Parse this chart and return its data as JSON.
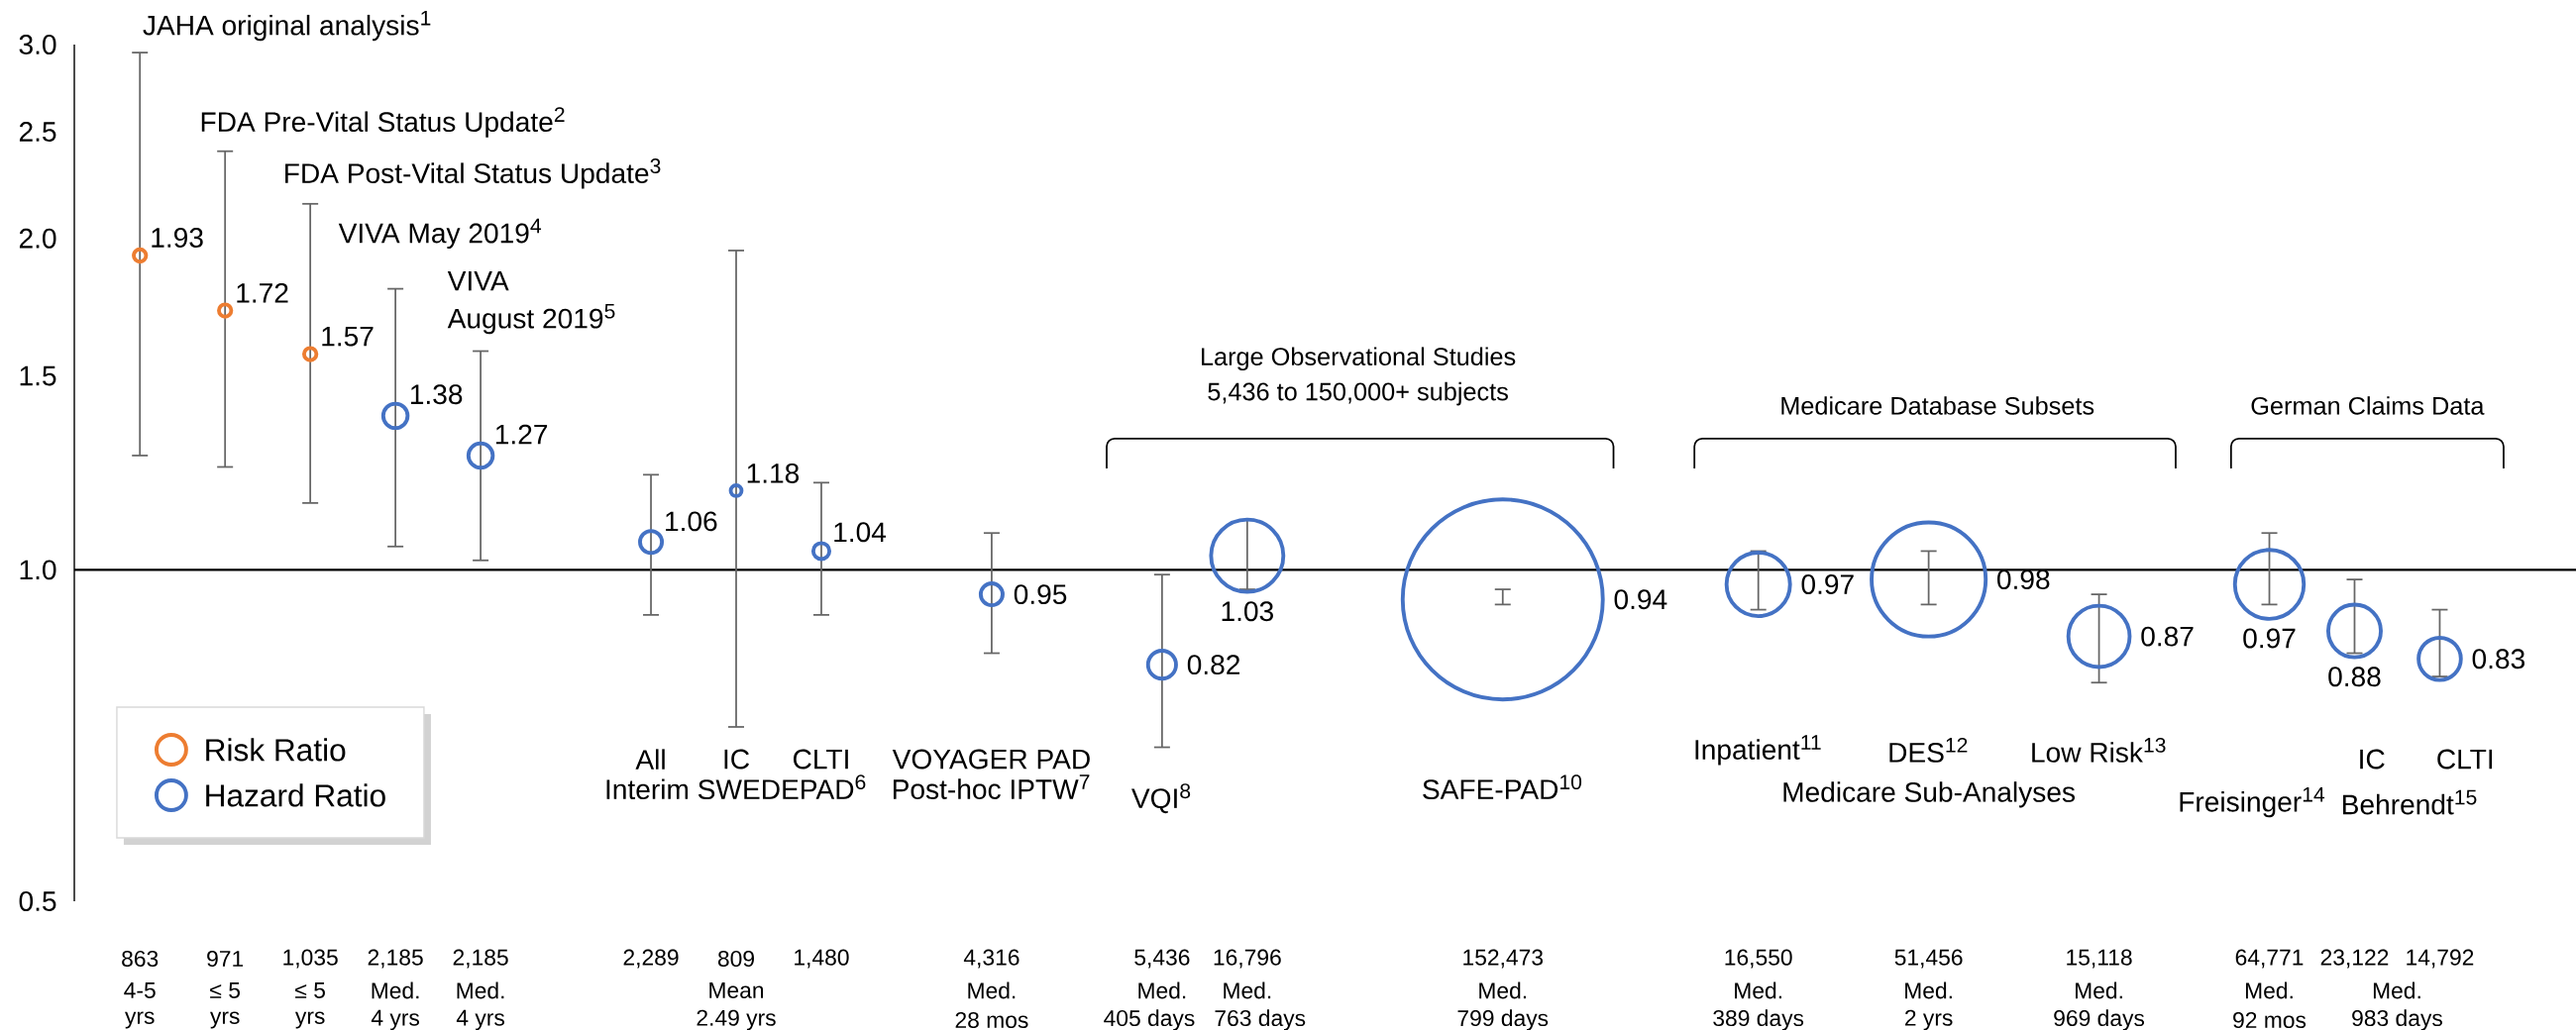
{
  "chart_data": {
    "type": "bubble",
    "categories": [
      "863",
      "971",
      "1,035",
      "2,185",
      "2,185",
      null,
      "2,289",
      "809",
      "1,480",
      null,
      "4,316",
      null,
      "5,436",
      "16,796",
      null,
      null,
      "152,473",
      null,
      null,
      "16,550",
      null,
      "51,456",
      null,
      "15,118",
      null,
      "64,771",
      "23,122",
      "14,792"
    ],
    "series": [
      {
        "name": "Risk Ratio",
        "color": "#ed7d31",
        "values": [
          1.93,
          1.72,
          1.57,
          null,
          null,
          null,
          null,
          null,
          null,
          null,
          null,
          null,
          null,
          null,
          null,
          null,
          null,
          null,
          null,
          null,
          null,
          null,
          null,
          null,
          null,
          null,
          null,
          null
        ],
        "sizes": [
          0.005,
          0.005,
          0.005,
          null,
          null,
          null,
          null,
          null,
          null,
          null,
          null,
          null,
          null,
          null,
          null,
          null,
          null,
          null,
          null,
          null,
          null,
          null,
          null,
          null,
          null,
          null,
          null,
          null
        ],
        "errors": [
          [
            1.27,
            2.95
          ],
          [
            1.24,
            2.4
          ],
          [
            1.15,
            2.15
          ],
          null,
          null,
          null,
          null,
          null,
          null,
          null,
          null,
          null,
          null,
          null,
          null,
          null,
          null,
          null,
          null,
          null,
          null,
          null,
          null,
          null,
          null,
          null,
          null,
          null
        ]
      },
      {
        "name": "Hazard Ratio",
        "color": "#4472c4",
        "values": [
          null,
          null,
          null,
          1.38,
          1.27,
          null,
          1.06,
          1.18,
          1.04,
          null,
          0.95,
          null,
          0.82,
          1.03,
          null,
          null,
          0.94,
          null,
          null,
          0.97,
          null,
          0.98,
          null,
          0.87,
          null,
          0.97,
          0.88,
          0.83
        ],
        "sizes": [
          null,
          null,
          null,
          0.017,
          0.017,
          null,
          0.014,
          0.004,
          0.008,
          null,
          0.014,
          null,
          0.022,
          0.135,
          null,
          null,
          1,
          null,
          null,
          0.105,
          null,
          0.33,
          null,
          0.098,
          null,
          0.123,
          0.073,
          0.048
        ],
        "errors": [
          null,
          null,
          null,
          [
            1.05,
            1.8
          ],
          [
            1.02,
            1.58
          ],
          null,
          [
            0.91,
            1.22
          ],
          [
            0.72,
            1.95
          ],
          [
            0.91,
            1.2
          ],
          null,
          [
            0.84,
            1.08
          ],
          null,
          [
            0.69,
            0.99
          ],
          [
            0.96,
            1.11
          ],
          null,
          null,
          [
            0.93,
            0.96
          ],
          null,
          null,
          [
            0.92,
            1.04
          ],
          null,
          [
            0.93,
            1.04
          ],
          null,
          [
            0.79,
            0.95
          ],
          null,
          [
            0.93,
            1.08
          ],
          [
            0.84,
            0.98
          ],
          [
            0.8,
            0.92
          ]
        ]
      }
    ],
    "ylim": [
      0.5,
      3.0
    ],
    "yticks": [
      0.5,
      {
        "value": 1.0,
        "label": "1.0"
      },
      1.5,
      {
        "value": 2.0,
        "label": "2.0"
      },
      2.5,
      {
        "value": 3.0,
        "label": "3.0"
      }
    ],
    "log": "y",
    "ref_lines": [
      {
        "axis": "y",
        "value": 1.0
      }
    ],
    "legend": "bottom left",
    "data_labels": true,
    "annotations": [
      "JAHA original analysis$^{1}$",
      "FDA Pre-Vital Status Update$^{2}$",
      "FDA Post-Vital Status Update$^{3}$",
      "VIVA May 2019$^{4}$",
      "VIVA",
      "August 2019$^{5}$",
      "All",
      "IC",
      "CLTI",
      "Interim SWEDEPAD$^{6}$",
      "VOYAGER PAD",
      "Post-hoc IPTW$^{7}$",
      "VQI$^{8}$",
      "SAFE-PAD$^{10}$",
      "Inpatient$^{11}$",
      "DES$^{12}$",
      "Low Risk$^{13}$",
      "Medicare Sub-Analyses",
      "IC",
      "CLTI",
      "Freisinger$^{14}$",
      "Behrendt$^{15}$",
      "Large Observational Studies",
      "5,436 to 150,000+ subjects",
      "Medicare Database Subsets",
      "German Claims Data",
      "4-5",
      "≤ 5",
      "≤ 5",
      "Med.",
      "Med.",
      "Mean",
      "Med.",
      "Med.",
      "Med.",
      "Med.",
      "Med.",
      "Med.",
      "Med.",
      "Med.",
      "Med.",
      "yrs",
      "yrs",
      "yrs",
      "4 yrs",
      "4 yrs",
      "2.49 yrs",
      "28 mos",
      "405 days",
      "763 days",
      "799 days",
      "389 days",
      "2 yrs",
      "969 days",
      "92 mos",
      "983 days"
    ]
  }
}
